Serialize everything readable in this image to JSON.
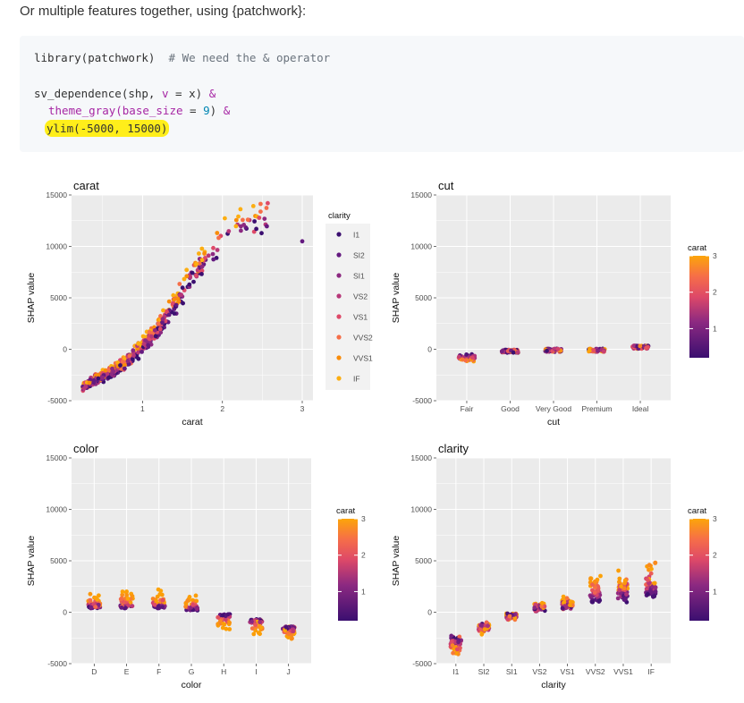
{
  "intro_text": "Or multiple features together, using {patchwork}:",
  "code": {
    "line1_a": "library(patchwork)",
    "line1_comment": "# We need the & operator",
    "line2_a": "sv_dependence(shp, ",
    "line2_v": "v",
    "line2_eq": " = ",
    "line2_x": "x)",
    "line2_amp": "&",
    "line3_a": "theme_gray(base_size ",
    "line3_eq": "=",
    "line3_num": "9",
    "line3_b": ")",
    "line3_amp": "&",
    "line4": "ylim(-5000, 15000)"
  },
  "colors": {
    "panel_bg": "#ebebeb",
    "grid": "#ffffff",
    "inferno_low": "#3b0f70",
    "inferno_high": "#fca50a",
    "highlight": "#ffee1a"
  },
  "chart_data": [
    {
      "type": "scatter",
      "title": "carat",
      "xlabel": "carat",
      "ylabel": "SHAP value",
      "x_ticks": [
        "1",
        "2",
        "3"
      ],
      "y_ticks": [
        "15000",
        "10000",
        "5000",
        "0",
        "-5000"
      ],
      "ylim": [
        -5000,
        15000
      ],
      "xlim": [
        0.2,
        3.0
      ],
      "grid": true,
      "legend": {
        "title": "clarity",
        "placement": "right",
        "entries": [
          "I1",
          "SI2",
          "SI1",
          "VS2",
          "VS1",
          "VVS2",
          "VVS1",
          "IF"
        ]
      },
      "trend_x": [
        0.2,
        0.4,
        0.6,
        0.8,
        1.0,
        1.2,
        1.4,
        1.6,
        1.8,
        2.0,
        2.2,
        2.5
      ],
      "trend_y": [
        -4000,
        -3000,
        -2200,
        -1200,
        500,
        2000,
        4500,
        7000,
        9000,
        11000,
        12000,
        13000
      ]
    },
    {
      "type": "scatter",
      "title": "cut",
      "xlabel": "cut",
      "ylabel": "SHAP value",
      "categories": [
        "Fair",
        "Good",
        "Very Good",
        "Premium",
        "Ideal"
      ],
      "y_ticks": [
        "15000",
        "10000",
        "5000",
        "0",
        "-5000"
      ],
      "ylim": [
        -5000,
        15000
      ],
      "values": [
        -600,
        -200,
        -100,
        -100,
        200
      ],
      "legend": {
        "title": "carat",
        "placement": "right",
        "ticks": [
          "3",
          "2",
          "1"
        ]
      }
    },
    {
      "type": "scatter",
      "title": "color",
      "xlabel": "color",
      "ylabel": "SHAP value",
      "categories": [
        "D",
        "E",
        "F",
        "G",
        "H",
        "I",
        "J"
      ],
      "y_ticks": [
        "15000",
        "10000",
        "5000",
        "0",
        "-5000"
      ],
      "ylim": [
        -5000,
        15000
      ],
      "values": [
        500,
        500,
        500,
        300,
        -300,
        -800,
        -1500
      ],
      "legend": {
        "title": "carat",
        "placement": "right",
        "ticks": [
          "3",
          "2",
          "1"
        ]
      }
    },
    {
      "type": "scatter",
      "title": "clarity",
      "xlabel": "clarity",
      "ylabel": "SHAP value",
      "categories": [
        "I1",
        "SI2",
        "SI1",
        "VS2",
        "VS1",
        "VVS2",
        "VVS1",
        "IF"
      ],
      "y_ticks": [
        "15000",
        "10000",
        "5000",
        "0",
        "-5000"
      ],
      "ylim": [
        -5000,
        15000
      ],
      "values": [
        -2500,
        -1200,
        -300,
        300,
        500,
        1000,
        1200,
        1500
      ],
      "legend": {
        "title": "carat",
        "placement": "right",
        "ticks": [
          "3",
          "2",
          "1"
        ]
      }
    }
  ]
}
